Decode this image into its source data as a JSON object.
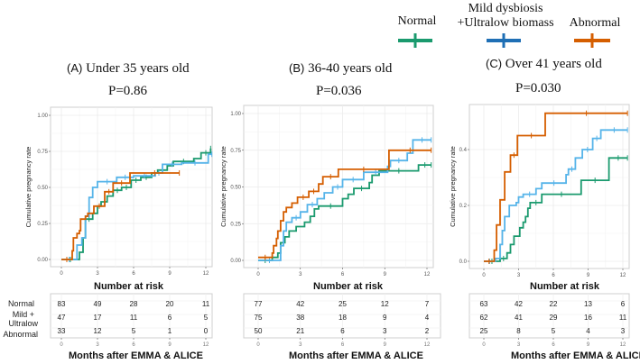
{
  "legend": {
    "items": [
      {
        "label": "Normal",
        "color": "#1a9a6e"
      },
      {
        "label": "Mild dysbiosis\n+Ultralow biomass",
        "label_line1": "Mild dysbiosis",
        "label_line2": "+Ultralow biomass",
        "color": "#1f6fb5"
      },
      {
        "label": "Abnormal",
        "color": "#d55e00"
      }
    ]
  },
  "risk_table": {
    "row_labels": [
      "Normal",
      "Mild +",
      "Ultralow",
      "Abnormal"
    ],
    "title": "Number at risk",
    "xlabel": "Months after EMMA & ALICE"
  },
  "colors": {
    "normal": "#1a9a6e",
    "mild": "#56b4e9",
    "abnormal": "#d55e00"
  },
  "chart_data": [
    {
      "type": "line",
      "subtype": "kaplan-meier-step",
      "panel_letter": "(A)",
      "title": "Under 35 years old",
      "pvalue": "P=0.86",
      "xlabel": "Months after EMMA & ALICE",
      "ylabel": "Cumulative pregnancy rate",
      "xlim": [
        -0.8,
        12.5
      ],
      "ylim": [
        -0.05,
        1.06
      ],
      "xticks": [
        0,
        3,
        6,
        9,
        12
      ],
      "yticks": [
        0,
        0.25,
        0.5,
        0.75,
        1.0
      ],
      "ytick_labels": [
        "0.00",
        "0.25",
        "0.50",
        "0.75",
        "1.00"
      ],
      "grid": true,
      "series": [
        {
          "name": "Normal",
          "key": "normal",
          "x": [
            0,
            1.5,
            1.8,
            2.0,
            2.6,
            3.0,
            3.3,
            3.8,
            4.3,
            5.0,
            5.8,
            6.6,
            7.5,
            8.0,
            8.8,
            9.3,
            11.0,
            11.6,
            12.4
          ],
          "y": [
            0,
            0.05,
            0.15,
            0.28,
            0.32,
            0.37,
            0.4,
            0.44,
            0.48,
            0.5,
            0.55,
            0.57,
            0.6,
            0.62,
            0.65,
            0.68,
            0.7,
            0.74,
            0.77
          ]
        },
        {
          "name": "Mild dysbiosis +Ultralow biomass",
          "key": "mild",
          "x": [
            0,
            1.3,
            1.7,
            2.0,
            2.3,
            2.6,
            3.0,
            4.6,
            6.0,
            7.8,
            8.4,
            10.0,
            12.2,
            12.5
          ],
          "y": [
            0,
            0.1,
            0.15,
            0.3,
            0.43,
            0.5,
            0.54,
            0.57,
            0.58,
            0.6,
            0.66,
            0.67,
            0.73,
            0.73
          ]
        },
        {
          "name": "Abnormal",
          "key": "abnormal",
          "x": [
            0,
            0.9,
            1.0,
            1.3,
            1.5,
            1.6,
            2.0,
            2.2,
            2.7,
            3.6,
            4.3,
            5.7,
            9.8
          ],
          "y": [
            0,
            0.06,
            0.15,
            0.18,
            0.2,
            0.28,
            0.3,
            0.32,
            0.37,
            0.47,
            0.53,
            0.6,
            0.6
          ]
        }
      ],
      "risk": {
        "times": [
          "0",
          "3",
          "6",
          "9",
          "12"
        ],
        "rows": [
          {
            "group": "Normal",
            "values": [
              "83",
              "49",
              "28",
              "20",
              "11"
            ]
          },
          {
            "group": "Mild + Ultralow",
            "values": [
              "47",
              "17",
              "11",
              "6",
              "5"
            ]
          },
          {
            "group": "Abnormal",
            "values": [
              "33",
              "12",
              "5",
              "1",
              "0"
            ]
          }
        ]
      }
    },
    {
      "type": "line",
      "subtype": "kaplan-meier-step",
      "panel_letter": "(B)",
      "title": "36-40 years old",
      "pvalue": "P=0.036",
      "xlabel": "Months after EMMA & ALICE",
      "ylabel": "Cumulative pregnancy rate",
      "xlim": [
        -1.0,
        12.4
      ],
      "ylim": [
        -0.05,
        1.06
      ],
      "xticks": [
        0,
        3,
        6,
        9,
        12
      ],
      "yticks": [
        0,
        0.25,
        0.5,
        0.75,
        1.0
      ],
      "ytick_labels": [
        "0.00",
        "0.25",
        "0.50",
        "0.75",
        "1.00"
      ],
      "grid": true,
      "series": [
        {
          "name": "Normal",
          "key": "normal",
          "x": [
            0,
            1.0,
            1.4,
            1.6,
            1.9,
            2.2,
            2.7,
            3.3,
            3.7,
            4.0,
            4.3,
            6.0,
            6.4,
            6.8,
            7.9,
            8.1,
            8.6,
            11.4,
            12.3
          ],
          "y": [
            0,
            0.02,
            0.05,
            0.12,
            0.16,
            0.2,
            0.23,
            0.26,
            0.3,
            0.35,
            0.37,
            0.42,
            0.45,
            0.49,
            0.53,
            0.58,
            0.61,
            0.65,
            0.65
          ]
        },
        {
          "name": "Mild dysbiosis +Ultralow biomass",
          "key": "mild",
          "x": [
            0,
            1.6,
            1.8,
            2.0,
            2.4,
            3.0,
            3.5,
            4.2,
            4.7,
            5.3,
            6.0,
            7.5,
            9.2,
            9.4,
            10.6,
            11.0,
            12.3
          ],
          "y": [
            0,
            0.1,
            0.2,
            0.26,
            0.29,
            0.33,
            0.38,
            0.42,
            0.46,
            0.5,
            0.55,
            0.6,
            0.64,
            0.68,
            0.73,
            0.82,
            0.82
          ]
        },
        {
          "name": "Abnormal",
          "key": "abnormal",
          "x": [
            0,
            1.0,
            1.1,
            1.3,
            1.4,
            1.6,
            1.8,
            2.0,
            2.4,
            2.8,
            3.6,
            4.3,
            4.6,
            5.7,
            9.3,
            12.3
          ],
          "y": [
            0.02,
            0.05,
            0.1,
            0.15,
            0.2,
            0.27,
            0.33,
            0.36,
            0.39,
            0.43,
            0.47,
            0.52,
            0.57,
            0.62,
            0.75,
            0.75
          ]
        }
      ],
      "risk": {
        "times": [
          "0",
          "3",
          "6",
          "9",
          "12"
        ],
        "rows": [
          {
            "group": "Normal",
            "values": [
              "77",
              "42",
              "25",
              "12",
              "7"
            ]
          },
          {
            "group": "Mild + Ultralow",
            "values": [
              "75",
              "38",
              "18",
              "9",
              "4"
            ]
          },
          {
            "group": "Abnormal",
            "values": [
              "50",
              "21",
              "6",
              "3",
              "2"
            ]
          }
        ]
      }
    },
    {
      "type": "line",
      "subtype": "kaplan-meier-step",
      "panel_letter": "(C)",
      "title": "Over 41 years old",
      "pvalue": "P=0.030",
      "xlabel": "Months after EMMA & ALICE",
      "ylabel": "Cumulative pregnancy rate",
      "xlim": [
        -1.2,
        12.5
      ],
      "ylim": [
        -0.03,
        0.56
      ],
      "xticks": [
        0,
        3,
        6,
        9,
        12
      ],
      "yticks": [
        0,
        0.2,
        0.4
      ],
      "ytick_labels": [
        "0.0",
        "0.2",
        "0.4"
      ],
      "grid": true,
      "series": [
        {
          "name": "Normal",
          "key": "normal",
          "x": [
            0,
            1.4,
            2.0,
            2.3,
            2.6,
            3.1,
            3.4,
            3.6,
            3.8,
            4.0,
            5.0,
            8.4,
            10.8,
            12.4
          ],
          "y": [
            0,
            0.01,
            0.03,
            0.06,
            0.09,
            0.12,
            0.14,
            0.16,
            0.19,
            0.21,
            0.24,
            0.29,
            0.37,
            0.37
          ]
        },
        {
          "name": "Mild dysbiosis +Ultralow biomass",
          "key": "mild",
          "x": [
            0,
            1.0,
            1.4,
            1.6,
            1.8,
            2.2,
            2.8,
            3.0,
            3.4,
            4.5,
            5.0,
            7.1,
            7.3,
            7.9,
            8.5,
            9.4,
            10.1,
            12.4
          ],
          "y": [
            0,
            0.01,
            0.06,
            0.11,
            0.16,
            0.2,
            0.21,
            0.23,
            0.24,
            0.26,
            0.28,
            0.31,
            0.33,
            0.37,
            0.4,
            0.44,
            0.47,
            0.47
          ]
        },
        {
          "name": "Abnormal",
          "key": "abnormal",
          "x": [
            0,
            0.9,
            1.1,
            1.4,
            1.8,
            2.3,
            2.9,
            5.3,
            12.4
          ],
          "y": [
            0,
            0.04,
            0.13,
            0.22,
            0.32,
            0.38,
            0.45,
            0.53,
            0.53
          ]
        }
      ],
      "risk": {
        "times": [
          "0",
          "3",
          "6",
          "9",
          "12"
        ],
        "rows": [
          {
            "group": "Normal",
            "values": [
              "63",
              "42",
              "22",
              "13",
              "6"
            ]
          },
          {
            "group": "Mild + Ultralow",
            "values": [
              "62",
              "41",
              "29",
              "16",
              "11"
            ]
          },
          {
            "group": "Abnormal",
            "values": [
              "25",
              "8",
              "5",
              "4",
              "3"
            ]
          }
        ]
      }
    }
  ]
}
